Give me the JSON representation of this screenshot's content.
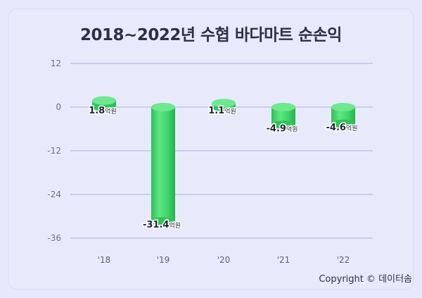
{
  "chart_data": {
    "type": "bar",
    "title": "2018~2022년 수협 바다마트 순손익",
    "categories": [
      "'18",
      "'19",
      "'20",
      "'21",
      "'22"
    ],
    "values": [
      1.8,
      -31.4,
      1.1,
      -4.9,
      -4.6
    ],
    "value_labels": [
      "1.8",
      "-31.4",
      "1.1",
      "-4.9",
      "-4.6"
    ],
    "unit": "억원",
    "yticks": [
      "12",
      "0",
      "-12",
      "-24",
      "-36"
    ],
    "ylim": [
      -36,
      12
    ],
    "grid": true,
    "bar_color": "#3fd46a",
    "grid_color": "#b9bde0"
  },
  "footer": {
    "copyright": "Copyright © 데이터솜"
  }
}
